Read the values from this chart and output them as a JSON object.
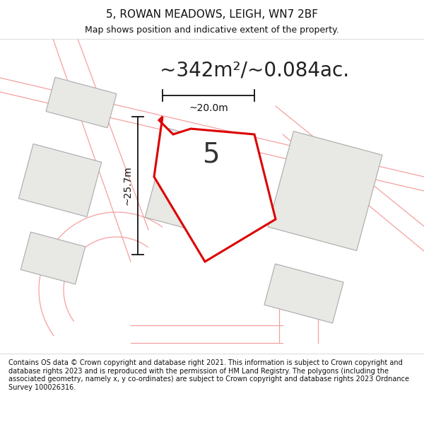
{
  "title": "5, ROWAN MEADOWS, LEIGH, WN7 2BF",
  "subtitle": "Map shows position and indicative extent of the property.",
  "area_text": "~342m²/~0.084ac.",
  "width_label": "~20.0m",
  "height_label": "~25.7m",
  "property_number": "5",
  "footer_text": "Contains OS data © Crown copyright and database right 2021. This information is subject to Crown copyright and database rights 2023 and is reproduced with the permission of HM Land Registry. The polygons (including the associated geometry, namely x, y co-ordinates) are subject to Crown copyright and database rights 2023 Ordnance Survey 100026316.",
  "bg_color": "#ffffff",
  "map_bg_color": "#ffffff",
  "property_fill": "#ffffff",
  "property_edge_color": "#dd0000",
  "building_fill": "#e8e8e5",
  "building_edge_color": "#aaaaaa",
  "road_line_color": "#f5a0a0",
  "dimension_color": "#111111",
  "title_color": "#111111",
  "footer_color": "#111111",
  "area_text_color": "#222222"
}
